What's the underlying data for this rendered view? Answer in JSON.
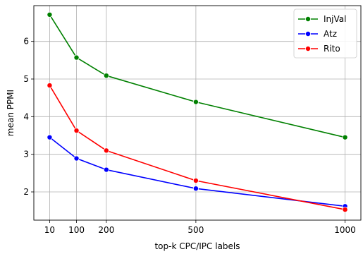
{
  "chart_data": {
    "type": "line",
    "title": "",
    "xlabel": "top-k CPC/IPC labels",
    "ylabel": "mean PPMI",
    "x": [
      10,
      100,
      200,
      500,
      1000
    ],
    "xticks": [
      10,
      100,
      200,
      500,
      1000
    ],
    "yticks": [
      2,
      3,
      4,
      5,
      6
    ],
    "xlim": [
      -43,
      1053
    ],
    "ylim": [
      1.25,
      6.95
    ],
    "grid": true,
    "legend_position": "top-right",
    "series": [
      {
        "name": "InjVal",
        "color": "#008000",
        "values": [
          6.71,
          5.57,
          5.09,
          4.39,
          3.45
        ]
      },
      {
        "name": "Atz",
        "color": "#0000ff",
        "values": [
          3.45,
          2.89,
          2.59,
          2.09,
          1.62
        ]
      },
      {
        "name": "Rito",
        "color": "#ff0000",
        "values": [
          4.83,
          3.63,
          3.1,
          2.3,
          1.53
        ]
      }
    ]
  }
}
